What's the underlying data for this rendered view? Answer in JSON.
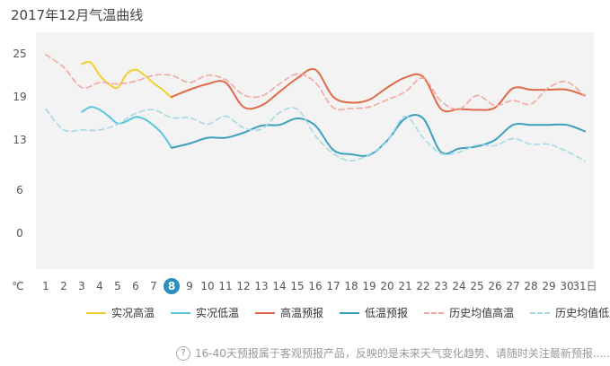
{
  "chart_data": {
    "type": "line",
    "title": "2017年12月气温曲线",
    "unit": "℃",
    "x": [
      1,
      2,
      3,
      4,
      5,
      6,
      7,
      8,
      9,
      10,
      11,
      12,
      13,
      14,
      15,
      16,
      17,
      18,
      19,
      20,
      21,
      22,
      23,
      24,
      25,
      26,
      27,
      28,
      29,
      30,
      31
    ],
    "x_suffix_last": "日",
    "highlight_day": 8,
    "ylim": [
      -5,
      28
    ],
    "yticks": [
      0,
      6,
      13,
      19,
      25
    ],
    "grid": "none",
    "legend_position": "bottom",
    "series": [
      {
        "name": "实况高温",
        "color": "#f2cf2e",
        "dashed": false,
        "points": [
          [
            3,
            23.6
          ],
          [
            3.5,
            23.8
          ],
          [
            4,
            22
          ],
          [
            4.5,
            20.8
          ],
          [
            5,
            20.3
          ],
          [
            5.5,
            22.2
          ],
          [
            6,
            22.8
          ],
          [
            6.5,
            22
          ],
          [
            7,
            20.9
          ],
          [
            7.5,
            20
          ],
          [
            8,
            18.9
          ]
        ]
      },
      {
        "name": "实况低温",
        "color": "#5bc5de",
        "dashed": false,
        "points": [
          [
            3,
            16.9
          ],
          [
            3.5,
            17.6
          ],
          [
            4,
            17.2
          ],
          [
            4.5,
            16.3
          ],
          [
            5,
            15.3
          ],
          [
            5.5,
            15.6
          ],
          [
            6,
            16.2
          ],
          [
            6.5,
            15.9
          ],
          [
            7,
            15
          ],
          [
            7.5,
            13.8
          ],
          [
            8,
            11.9
          ]
        ]
      },
      {
        "name": "高温预报",
        "color": "#e06b4a",
        "dashed": false,
        "points": [
          [
            8,
            19
          ],
          [
            9,
            20
          ],
          [
            10,
            20.8
          ],
          [
            11,
            21
          ],
          [
            12,
            17.6
          ],
          [
            13,
            17.8
          ],
          [
            14,
            19.7
          ],
          [
            15,
            21.6
          ],
          [
            16,
            22.8
          ],
          [
            17,
            19
          ],
          [
            18,
            18.2
          ],
          [
            19,
            18.6
          ],
          [
            20,
            20.3
          ],
          [
            21,
            21.7
          ],
          [
            22,
            21.8
          ],
          [
            23,
            17.3
          ],
          [
            24,
            17.3
          ],
          [
            25,
            17.2
          ],
          [
            26,
            17.5
          ],
          [
            27,
            20.2
          ],
          [
            28,
            20
          ],
          [
            29,
            20
          ],
          [
            30,
            20
          ],
          [
            31,
            19.2
          ]
        ]
      },
      {
        "name": "低温预报",
        "color": "#3aa0be",
        "dashed": false,
        "points": [
          [
            8,
            11.9
          ],
          [
            9,
            12.5
          ],
          [
            10,
            13.3
          ],
          [
            11,
            13.3
          ],
          [
            12,
            14
          ],
          [
            13,
            15
          ],
          [
            14,
            15.1
          ],
          [
            15,
            16
          ],
          [
            16,
            15
          ],
          [
            17,
            11.6
          ],
          [
            18,
            11
          ],
          [
            19,
            10.9
          ],
          [
            20,
            12.9
          ],
          [
            21,
            16
          ],
          [
            22,
            16
          ],
          [
            23,
            11.3
          ],
          [
            24,
            11.8
          ],
          [
            25,
            12.1
          ],
          [
            26,
            13
          ],
          [
            27,
            15.1
          ],
          [
            28,
            15.1
          ],
          [
            29,
            15.1
          ],
          [
            30,
            15.1
          ],
          [
            31,
            14.2
          ]
        ]
      },
      {
        "name": "历史均值高温",
        "color": "#f2a8a0",
        "dashed": true,
        "points": [
          [
            1,
            24.9
          ],
          [
            2,
            23.1
          ],
          [
            3,
            20.3
          ],
          [
            4,
            21
          ],
          [
            5,
            20.8
          ],
          [
            6,
            21.2
          ],
          [
            7,
            22
          ],
          [
            8,
            22
          ],
          [
            9,
            21
          ],
          [
            10,
            22
          ],
          [
            11,
            21.4
          ],
          [
            12,
            19.3
          ],
          [
            13,
            19.1
          ],
          [
            14,
            20.8
          ],
          [
            15,
            22.2
          ],
          [
            16,
            21
          ],
          [
            17,
            17.5
          ],
          [
            18,
            17.4
          ],
          [
            19,
            17.6
          ],
          [
            20,
            18.6
          ],
          [
            21,
            19.7
          ],
          [
            22,
            21.6
          ],
          [
            23,
            18.4
          ],
          [
            24,
            17.3
          ],
          [
            25,
            19.2
          ],
          [
            26,
            17.8
          ],
          [
            27,
            18.5
          ],
          [
            28,
            18
          ],
          [
            29,
            20.3
          ],
          [
            30,
            21.1
          ],
          [
            31,
            19.1
          ]
        ]
      },
      {
        "name": "历史均值低温",
        "color": "#a6d8e6",
        "dashed": true,
        "points": [
          [
            1,
            17.3
          ],
          [
            2,
            14.4
          ],
          [
            3,
            14.4
          ],
          [
            4,
            14.4
          ],
          [
            5,
            15.2
          ],
          [
            6,
            16.7
          ],
          [
            7,
            17.2
          ],
          [
            8,
            16.1
          ],
          [
            9,
            16.1
          ],
          [
            10,
            15.2
          ],
          [
            11,
            16.3
          ],
          [
            12,
            14.7
          ],
          [
            13,
            14.5
          ],
          [
            14,
            16.8
          ],
          [
            15,
            17.3
          ],
          [
            16,
            13.6
          ],
          [
            17,
            11.1
          ],
          [
            18,
            10.1
          ],
          [
            19,
            11
          ],
          [
            20,
            12.8
          ],
          [
            21,
            16.3
          ],
          [
            22,
            13.3
          ],
          [
            23,
            11.1
          ],
          [
            24,
            11.3
          ],
          [
            25,
            12.3
          ],
          [
            26,
            12.2
          ],
          [
            27,
            13.2
          ],
          [
            28,
            12.4
          ],
          [
            29,
            12.4
          ],
          [
            30,
            11.4
          ],
          [
            31,
            10.1
          ]
        ]
      }
    ]
  },
  "footer": {
    "icon": "help-icon",
    "note": "16-40天预报属于客观预报产品，反映的是未来天气变化趋势、请随时关注最新预报......"
  }
}
